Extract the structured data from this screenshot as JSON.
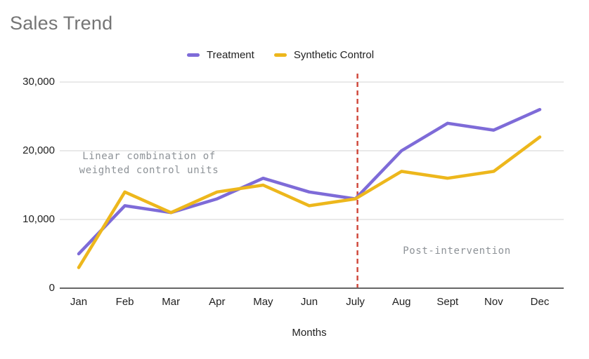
{
  "chart_data": {
    "type": "line",
    "title": "Sales Trend",
    "xlabel": "Months",
    "ylabel": "",
    "categories": [
      "Jan",
      "Feb",
      "Mar",
      "Apr",
      "May",
      "Jun",
      "July",
      "Aug",
      "Sept",
      "Nov",
      "Dec"
    ],
    "series": [
      {
        "name": "Treatment",
        "color": "#7E6BD8",
        "values": [
          5000,
          12000,
          11000,
          13000,
          16000,
          14000,
          13000,
          20000,
          24000,
          23000,
          26000
        ]
      },
      {
        "name": "Synthetic Control",
        "color": "#EDB71C",
        "values": [
          3000,
          14000,
          11000,
          14000,
          15000,
          12000,
          13000,
          17000,
          16000,
          17000,
          22000
        ]
      }
    ],
    "ylim": [
      0,
      30000
    ],
    "yticks": [
      0,
      10000,
      20000,
      30000
    ],
    "ytick_labels": [
      "0",
      "10,000",
      "20,000",
      "30,000"
    ],
    "grid": true,
    "legend_position": "top",
    "intervention_line": {
      "at": "July",
      "style": "dashed",
      "color": "#CE4437"
    },
    "annotations": [
      {
        "id": "pre",
        "text": "Linear combination of\nweighted control units",
        "color": "#8D9297"
      },
      {
        "id": "post",
        "text": "Post-intervention",
        "color": "#8D9297"
      }
    ],
    "colors": {
      "gridline": "#DCDCDC",
      "axis_line": "#333333",
      "title_text": "#757575",
      "tick_text": "#212121",
      "annotation_text": "#8D9297"
    }
  }
}
